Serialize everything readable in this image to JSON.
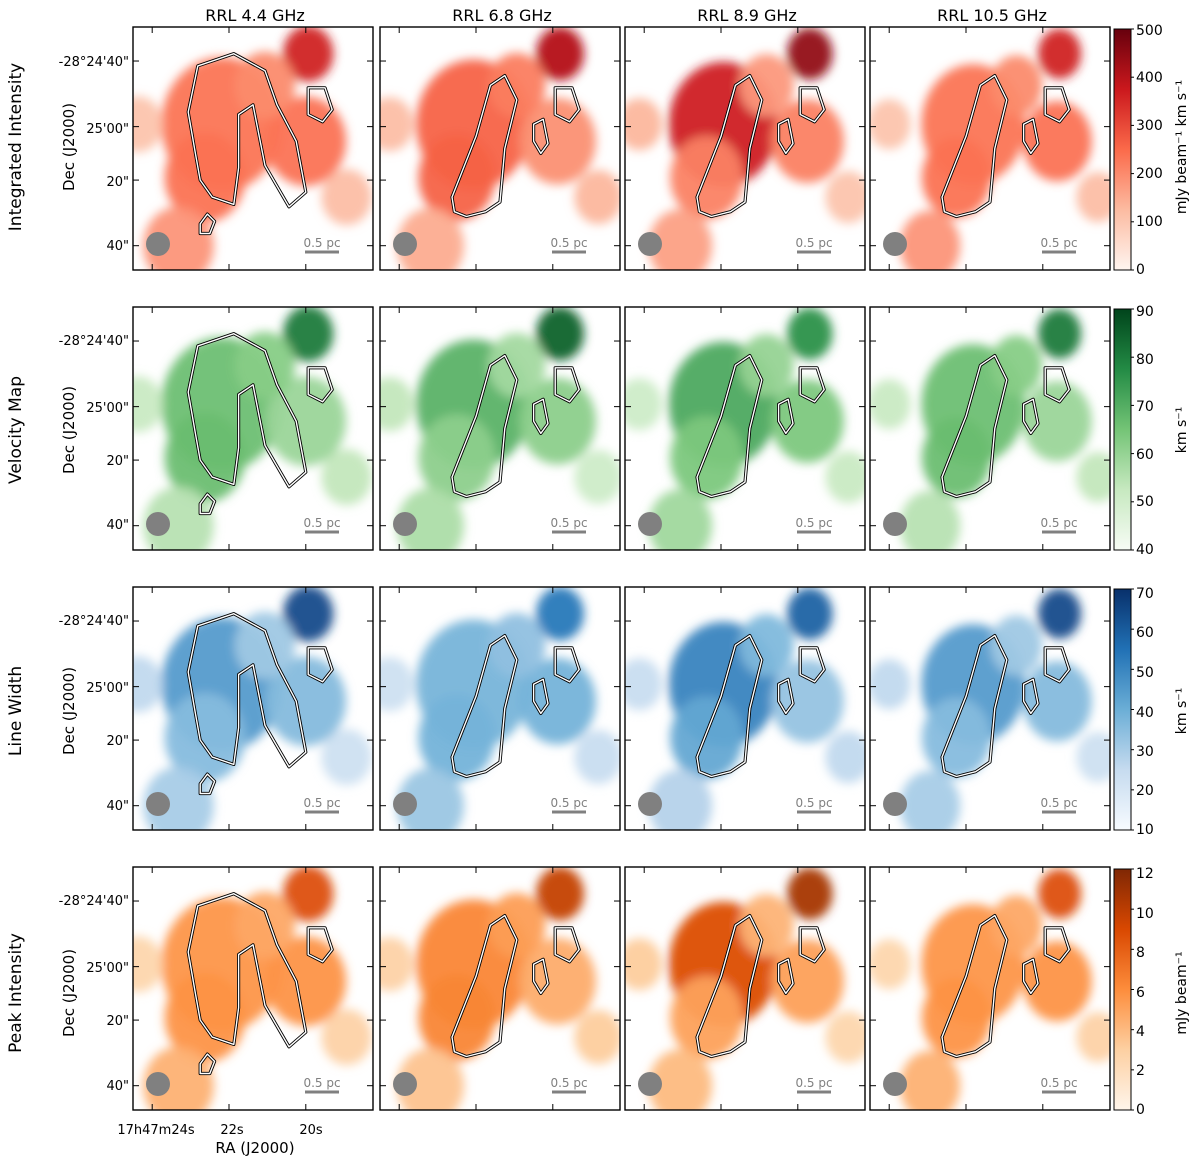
{
  "chart_data": {
    "type": "heatmap",
    "title": "",
    "column_titles": [
      "RRL 4.4 GHz",
      "RRL 6.8 GHz",
      "RRL 8.9 GHz",
      "RRL 10.5 GHz"
    ],
    "rows": [
      {
        "label": "Integrated Intensity",
        "colorbar": {
          "range": [
            0,
            500
          ],
          "ticks": [
            "0",
            "100",
            "200",
            "300",
            "400",
            "500"
          ],
          "unit": "mJy beam⁻¹ km s⁻¹",
          "cmap": [
            "#fff5f0",
            "#fcbba1",
            "#fb6a4a",
            "#cb181d",
            "#67000d"
          ]
        }
      },
      {
        "label": "Velocity Map",
        "colorbar": {
          "range": [
            40,
            90
          ],
          "ticks": [
            "40",
            "50",
            "60",
            "70",
            "80",
            "90"
          ],
          "unit": "km s⁻¹",
          "cmap": [
            "#f7fcf5",
            "#c7e9c0",
            "#74c476",
            "#238b45",
            "#00441b"
          ]
        }
      },
      {
        "label": "Line Width",
        "colorbar": {
          "range": [
            10,
            70
          ],
          "ticks": [
            "10",
            "20",
            "30",
            "40",
            "50",
            "60",
            "70"
          ],
          "unit": "km s⁻¹",
          "cmap": [
            "#f7fbff",
            "#c6dbef",
            "#6baed6",
            "#2171b5",
            "#08306b"
          ]
        }
      },
      {
        "label": "Peak Intensity",
        "colorbar": {
          "range": [
            0,
            12
          ],
          "ticks": [
            "0",
            "2",
            "4",
            "6",
            "8",
            "10",
            "12"
          ],
          "unit": "mJy beam⁻¹",
          "cmap": [
            "#fff5eb",
            "#fdd0a2",
            "#fd8d3c",
            "#d94801",
            "#7f2704"
          ]
        }
      }
    ],
    "y_axis": {
      "label": "Dec (J2000)",
      "ticks": [
        "-28°24'40\"",
        "25'00\"",
        "20\"",
        "40\""
      ]
    },
    "x_axis": {
      "label": "RA (J2000)",
      "ticks": [
        "17h47m24s",
        "22s",
        "20s"
      ]
    },
    "scale_bar": "0.5 pc",
    "blobs": [
      {
        "cx": 0.4,
        "cy": 0.4,
        "r": 0.24,
        "v": 0.55
      },
      {
        "cx": 0.33,
        "cy": 0.62,
        "r": 0.16,
        "v": 0.5
      },
      {
        "cx": 0.75,
        "cy": 0.47,
        "r": 0.16,
        "v": 0.45
      },
      {
        "cx": 0.76,
        "cy": 0.11,
        "r": 0.1,
        "v": 0.85
      },
      {
        "cx": 0.58,
        "cy": 0.24,
        "r": 0.12,
        "v": 0.42
      },
      {
        "cx": 0.22,
        "cy": 0.9,
        "r": 0.14,
        "v": 0.35
      },
      {
        "cx": 0.05,
        "cy": 0.4,
        "r": 0.1,
        "v": 0.25
      },
      {
        "cx": 0.92,
        "cy": 0.7,
        "r": 0.1,
        "v": 0.25
      }
    ]
  }
}
